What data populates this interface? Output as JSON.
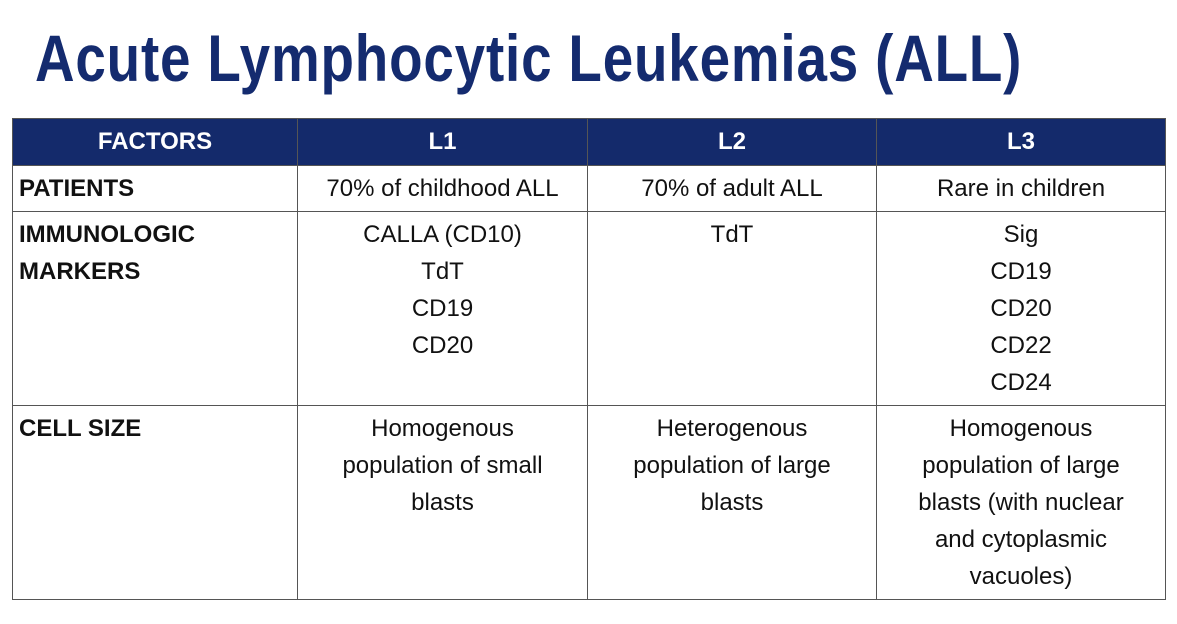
{
  "title": "Acute Lymphocytic Leukemias (ALL)",
  "table": {
    "header": [
      "FACTORS",
      "L1",
      "L2",
      "L3"
    ],
    "rows": [
      [
        [
          "PATIENTS"
        ],
        [
          "70% of childhood ALL"
        ],
        [
          "70% of adult ALL"
        ],
        [
          "Rare in children"
        ]
      ],
      [
        [
          "IMMUNOLOGIC",
          "MARKERS"
        ],
        [
          "CALLA (CD10)",
          "TdT",
          "CD19",
          "CD20"
        ],
        [
          "TdT"
        ],
        [
          "Sig",
          "CD19",
          "CD20",
          "CD22",
          "CD24"
        ]
      ],
      [
        [
          "CELL SIZE"
        ],
        [
          "Homogenous",
          "population of small",
          "blasts"
        ],
        [
          "Heterogenous",
          "population of large",
          "blasts"
        ],
        [
          "Homogenous",
          "population of large",
          "blasts (with nuclear",
          "and cytoplasmic",
          "vacuoles)"
        ]
      ]
    ]
  }
}
